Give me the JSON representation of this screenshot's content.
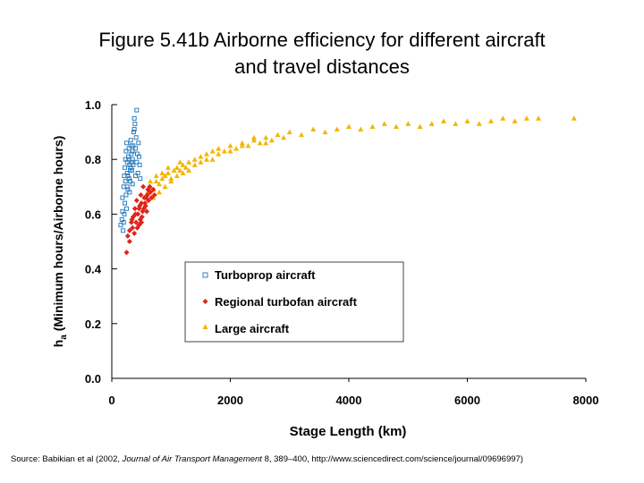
{
  "title": {
    "line1": "Figure 5.41b Airborne efficiency for different aircraft",
    "line2": "and travel distances"
  },
  "chart_data": {
    "type": "scatter",
    "xlabel": "Stage Length (km)",
    "ylabel": "ha (Minimum hours/Airborne hours)",
    "ylabel_main": "h",
    "ylabel_sub": "a",
    "ylabel_rest": " (Minimum hours/Airborne hours)",
    "xlim": [
      0,
      8000
    ],
    "ylim": [
      0.0,
      1.0
    ],
    "x_ticks": [
      "0",
      "2000",
      "4000",
      "6000",
      "8000"
    ],
    "y_ticks": [
      "0.0",
      "0.2",
      "0.4",
      "0.6",
      "0.8",
      "1.0"
    ],
    "grid": false,
    "legend_position": "center-bottom",
    "series": [
      {
        "name": "Turboprop aircraft",
        "color": "#2f7fc1",
        "marker": "square-open",
        "points": [
          [
            150,
            0.56
          ],
          [
            170,
            0.58
          ],
          [
            180,
            0.66
          ],
          [
            200,
            0.7
          ],
          [
            210,
            0.74
          ],
          [
            220,
            0.77
          ],
          [
            230,
            0.8
          ],
          [
            240,
            0.83
          ],
          [
            250,
            0.86
          ],
          [
            260,
            0.79
          ],
          [
            270,
            0.74
          ],
          [
            280,
            0.81
          ],
          [
            290,
            0.84
          ],
          [
            300,
            0.78
          ],
          [
            310,
            0.72
          ],
          [
            320,
            0.87
          ],
          [
            330,
            0.82
          ],
          [
            340,
            0.76
          ],
          [
            350,
            0.8
          ],
          [
            360,
            0.85
          ],
          [
            370,
            0.9
          ],
          [
            380,
            0.95
          ],
          [
            390,
            0.93
          ],
          [
            400,
            0.84
          ],
          [
            410,
            0.88
          ],
          [
            420,
            0.79
          ],
          [
            430,
            0.82
          ],
          [
            440,
            0.75
          ],
          [
            450,
            0.86
          ],
          [
            460,
            0.81
          ],
          [
            470,
            0.78
          ],
          [
            480,
            0.73
          ],
          [
            200,
            0.57
          ],
          [
            250,
            0.62
          ],
          [
            300,
            0.68
          ],
          [
            350,
            0.71
          ],
          [
            220,
            0.64
          ],
          [
            270,
            0.69
          ],
          [
            310,
            0.76
          ],
          [
            340,
            0.79
          ],
          [
            180,
            0.61
          ],
          [
            230,
            0.72
          ],
          [
            260,
            0.75
          ],
          [
            290,
            0.8
          ],
          [
            330,
            0.85
          ],
          [
            360,
            0.78
          ],
          [
            400,
            0.74
          ],
          [
            420,
            0.98
          ],
          [
            380,
            0.91
          ],
          [
            350,
            0.83
          ],
          [
            320,
            0.77
          ],
          [
            290,
            0.73
          ],
          [
            260,
            0.7
          ],
          [
            240,
            0.67
          ],
          [
            210,
            0.6
          ],
          [
            190,
            0.54
          ]
        ]
      },
      {
        "name": "Regional turbofan aircraft",
        "color": "#e0241b",
        "marker": "diamond",
        "points": [
          [
            250,
            0.46
          ],
          [
            270,
            0.52
          ],
          [
            300,
            0.54
          ],
          [
            330,
            0.57
          ],
          [
            360,
            0.59
          ],
          [
            400,
            0.6
          ],
          [
            430,
            0.55
          ],
          [
            460,
            0.62
          ],
          [
            480,
            0.58
          ],
          [
            500,
            0.64
          ],
          [
            520,
            0.61
          ],
          [
            550,
            0.66
          ],
          [
            570,
            0.63
          ],
          [
            600,
            0.67
          ],
          [
            620,
            0.65
          ],
          [
            650,
            0.68
          ],
          [
            380,
            0.53
          ],
          [
            410,
            0.57
          ],
          [
            440,
            0.6
          ],
          [
            470,
            0.63
          ],
          [
            510,
            0.59
          ],
          [
            540,
            0.62
          ],
          [
            580,
            0.66
          ],
          [
            610,
            0.69
          ],
          [
            300,
            0.5
          ],
          [
            350,
            0.55
          ],
          [
            420,
            0.65
          ],
          [
            490,
            0.67
          ],
          [
            530,
            0.7
          ],
          [
            560,
            0.64
          ],
          [
            590,
            0.61
          ],
          [
            640,
            0.7
          ],
          [
            670,
            0.66
          ],
          [
            700,
            0.69
          ],
          [
            720,
            0.67
          ],
          [
            460,
            0.56
          ],
          [
            390,
            0.62
          ],
          [
            340,
            0.58
          ],
          [
            500,
            0.57
          ]
        ]
      },
      {
        "name": "Large aircraft",
        "color": "#f2b600",
        "marker": "triangle",
        "points": [
          [
            550,
            0.66
          ],
          [
            600,
            0.68
          ],
          [
            650,
            0.7
          ],
          [
            700,
            0.69
          ],
          [
            750,
            0.72
          ],
          [
            800,
            0.71
          ],
          [
            850,
            0.73
          ],
          [
            900,
            0.74
          ],
          [
            950,
            0.75
          ],
          [
            1000,
            0.73
          ],
          [
            1050,
            0.76
          ],
          [
            1100,
            0.77
          ],
          [
            1150,
            0.76
          ],
          [
            1200,
            0.78
          ],
          [
            1300,
            0.79
          ],
          [
            1400,
            0.8
          ],
          [
            1500,
            0.81
          ],
          [
            1600,
            0.82
          ],
          [
            1700,
            0.83
          ],
          [
            1800,
            0.84
          ],
          [
            1900,
            0.83
          ],
          [
            2000,
            0.85
          ],
          [
            2100,
            0.84
          ],
          [
            2200,
            0.86
          ],
          [
            2300,
            0.85
          ],
          [
            2400,
            0.87
          ],
          [
            2500,
            0.86
          ],
          [
            2600,
            0.88
          ],
          [
            2700,
            0.87
          ],
          [
            2800,
            0.89
          ],
          [
            2900,
            0.88
          ],
          [
            3000,
            0.9
          ],
          [
            3200,
            0.89
          ],
          [
            3400,
            0.91
          ],
          [
            3600,
            0.9
          ],
          [
            3800,
            0.91
          ],
          [
            4000,
            0.92
          ],
          [
            4200,
            0.91
          ],
          [
            4400,
            0.92
          ],
          [
            4600,
            0.93
          ],
          [
            4800,
            0.92
          ],
          [
            5000,
            0.93
          ],
          [
            5200,
            0.92
          ],
          [
            5400,
            0.93
          ],
          [
            5600,
            0.94
          ],
          [
            5800,
            0.93
          ],
          [
            6000,
            0.94
          ],
          [
            6200,
            0.93
          ],
          [
            6400,
            0.94
          ],
          [
            6600,
            0.95
          ],
          [
            6800,
            0.94
          ],
          [
            7000,
            0.95
          ],
          [
            7200,
            0.95
          ],
          [
            7800,
            0.95
          ],
          [
            700,
            0.66
          ],
          [
            800,
            0.68
          ],
          [
            900,
            0.7
          ],
          [
            1000,
            0.72
          ],
          [
            1100,
            0.74
          ],
          [
            1200,
            0.75
          ],
          [
            1300,
            0.76
          ],
          [
            1400,
            0.78
          ],
          [
            1600,
            0.8
          ],
          [
            1800,
            0.82
          ],
          [
            2000,
            0.83
          ],
          [
            2200,
            0.85
          ],
          [
            2400,
            0.88
          ],
          [
            2600,
            0.86
          ],
          [
            1700,
            0.8
          ],
          [
            1500,
            0.79
          ],
          [
            1250,
            0.77
          ],
          [
            1150,
            0.79
          ],
          [
            950,
            0.77
          ],
          [
            850,
            0.75
          ],
          [
            750,
            0.74
          ],
          [
            650,
            0.72
          ]
        ]
      }
    ]
  },
  "source": {
    "prefix": "Source: Babikian et al (2002, ",
    "journal": "Journal of Air Transport Management",
    "suffix": " 8, 389–400, http://www.sciencedirect.com/science/journal/09696997)"
  }
}
